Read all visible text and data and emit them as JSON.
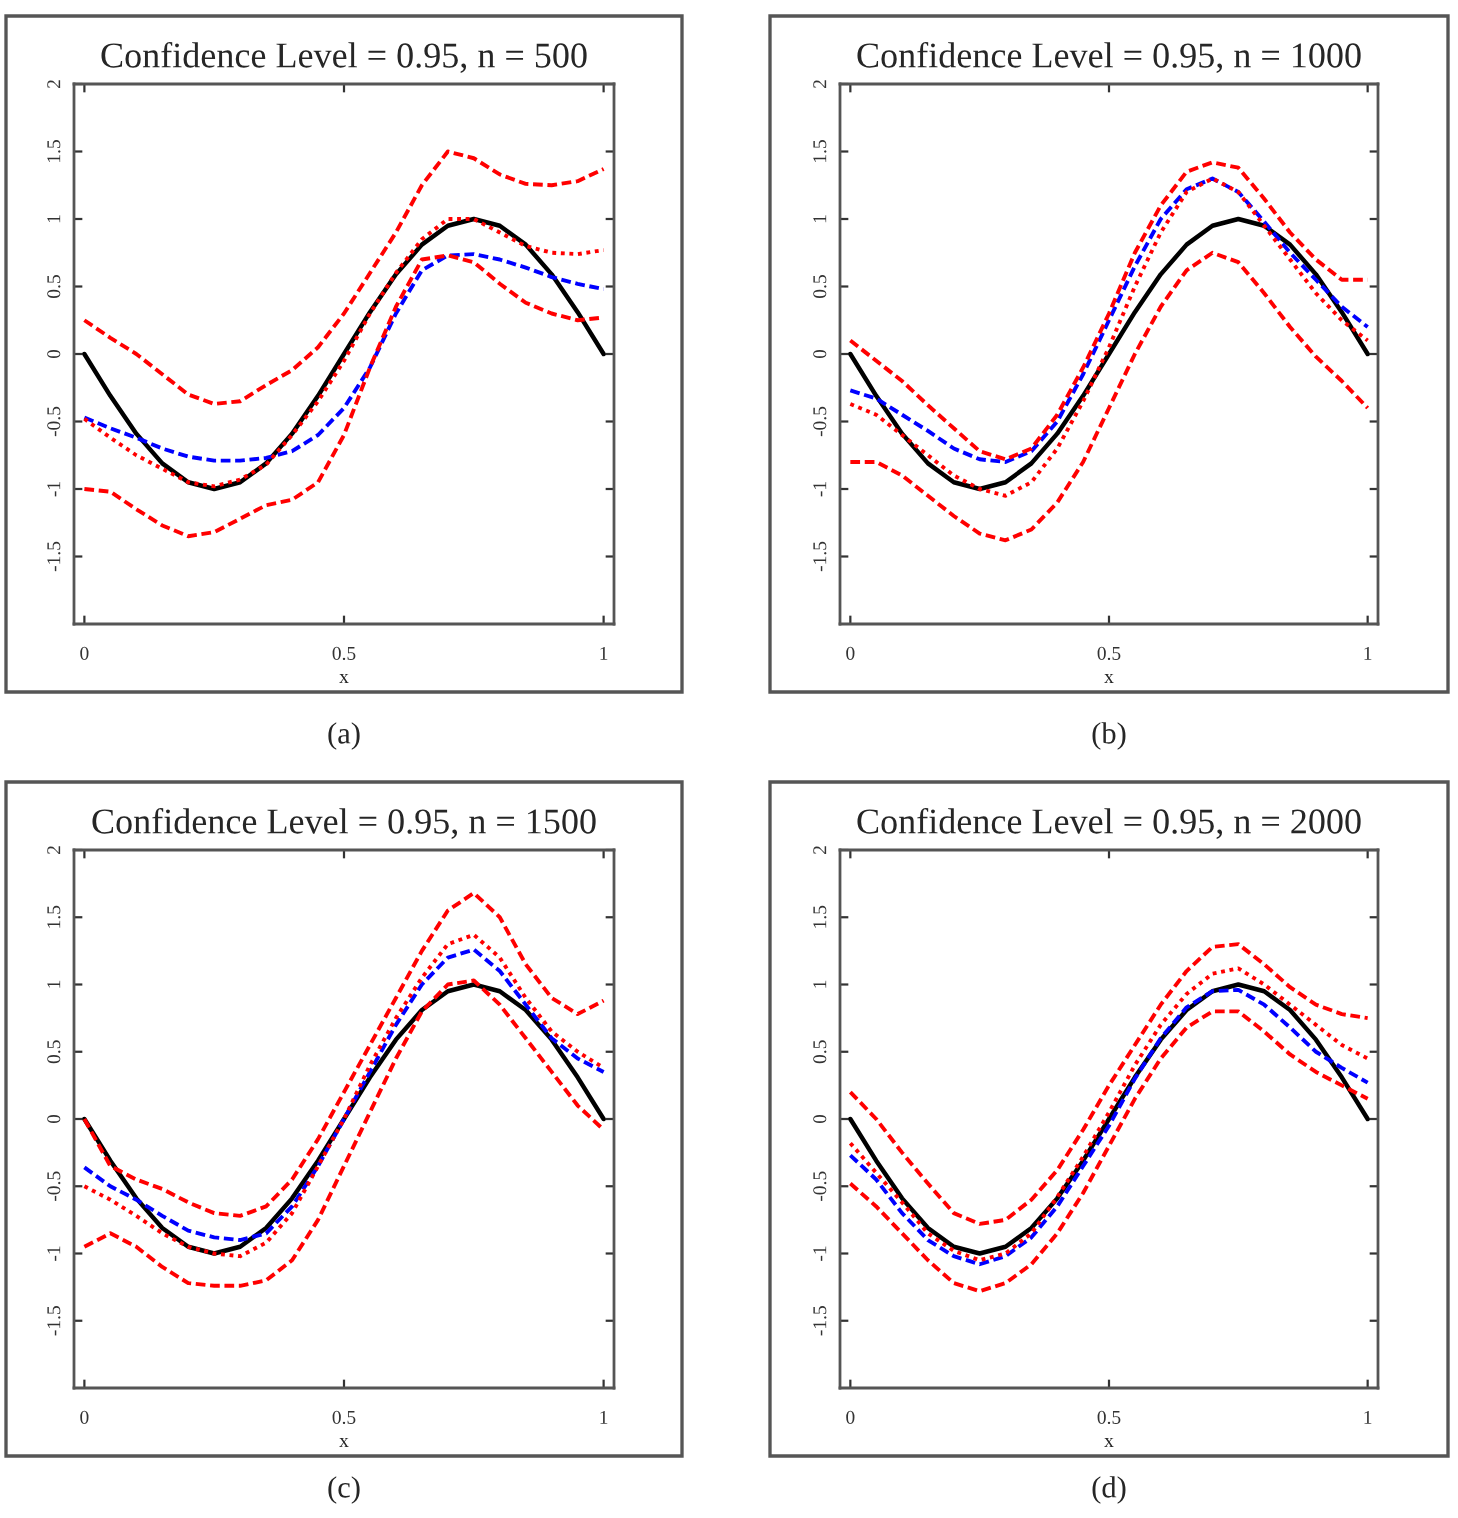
{
  "chart_data": [
    {
      "type": "line",
      "title": "Confidence Level = 0.95, n = 500",
      "xlabel": "x",
      "annotations": [
        "(a)"
      ],
      "xlim": [
        -0.02,
        1.02
      ],
      "ylim": [
        -2,
        2
      ],
      "xticks": [
        0,
        0.5,
        1
      ],
      "yticks": [
        -1.5,
        -1,
        -0.5,
        0,
        0.5,
        1,
        1.5,
        2
      ],
      "grid": false,
      "legend": false,
      "x": [
        0,
        0.05,
        0.1,
        0.15,
        0.2,
        0.25,
        0.3,
        0.35,
        0.4,
        0.45,
        0.5,
        0.55,
        0.6,
        0.65,
        0.7,
        0.75,
        0.8,
        0.85,
        0.9,
        0.95,
        1
      ],
      "series": [
        {
          "color": "#ff0000",
          "line_style": "dashed",
          "values": [
            0.25,
            0.12,
            0.0,
            -0.15,
            -0.3,
            -0.37,
            -0.35,
            -0.23,
            -0.12,
            0.05,
            0.3,
            0.6,
            0.9,
            1.25,
            1.5,
            1.45,
            1.33,
            1.26,
            1.25,
            1.28,
            1.37
          ]
        },
        {
          "color": "#ff0000",
          "line_style": "dashed",
          "values": [
            -1.0,
            -1.02,
            -1.15,
            -1.27,
            -1.35,
            -1.32,
            -1.22,
            -1.12,
            -1.08,
            -0.95,
            -0.6,
            -0.1,
            0.35,
            0.7,
            0.73,
            0.68,
            0.52,
            0.38,
            0.3,
            0.25,
            0.27
          ]
        },
        {
          "color": "#ff0000",
          "line_style": "dotted",
          "values": [
            -0.48,
            -0.62,
            -0.75,
            -0.85,
            -0.95,
            -0.98,
            -0.93,
            -0.82,
            -0.6,
            -0.35,
            -0.05,
            0.3,
            0.6,
            0.85,
            1.0,
            1.0,
            0.9,
            0.8,
            0.75,
            0.74,
            0.77
          ]
        },
        {
          "color": "#0000ff",
          "line_style": "dashed",
          "values": [
            -0.47,
            -0.55,
            -0.62,
            -0.7,
            -0.76,
            -0.79,
            -0.79,
            -0.77,
            -0.72,
            -0.6,
            -0.4,
            -0.1,
            0.3,
            0.62,
            0.73,
            0.74,
            0.7,
            0.64,
            0.57,
            0.52,
            0.48
          ]
        },
        {
          "color": "#000000",
          "line_style": "solid",
          "values": [
            0,
            -0.31,
            -0.59,
            -0.81,
            -0.95,
            -1,
            -0.95,
            -0.81,
            -0.59,
            -0.31,
            0,
            0.31,
            0.59,
            0.81,
            0.95,
            1,
            0.95,
            0.81,
            0.59,
            0.31,
            0
          ]
        }
      ]
    },
    {
      "type": "line",
      "title": "Confidence Level = 0.95, n = 1000",
      "xlabel": "x",
      "annotations": [
        "(b)"
      ],
      "xlim": [
        -0.02,
        1.02
      ],
      "ylim": [
        -2,
        2
      ],
      "xticks": [
        0,
        0.5,
        1
      ],
      "yticks": [
        -1.5,
        -1,
        -0.5,
        0,
        0.5,
        1,
        1.5,
        2
      ],
      "grid": false,
      "legend": false,
      "x": [
        0,
        0.05,
        0.1,
        0.15,
        0.2,
        0.25,
        0.3,
        0.35,
        0.4,
        0.45,
        0.5,
        0.55,
        0.6,
        0.65,
        0.7,
        0.75,
        0.8,
        0.85,
        0.9,
        0.95,
        1
      ],
      "series": [
        {
          "color": "#ff0000",
          "line_style": "dashed",
          "values": [
            0.1,
            -0.05,
            -0.2,
            -0.38,
            -0.55,
            -0.72,
            -0.78,
            -0.7,
            -0.45,
            -0.1,
            0.3,
            0.75,
            1.1,
            1.35,
            1.42,
            1.38,
            1.15,
            0.9,
            0.7,
            0.55,
            0.55
          ]
        },
        {
          "color": "#ff0000",
          "line_style": "dashed",
          "values": [
            -0.8,
            -0.8,
            -0.9,
            -1.05,
            -1.2,
            -1.33,
            -1.38,
            -1.3,
            -1.1,
            -0.8,
            -0.4,
            0.0,
            0.35,
            0.62,
            0.75,
            0.68,
            0.45,
            0.2,
            -0.02,
            -0.2,
            -0.4
          ]
        },
        {
          "color": "#ff0000",
          "line_style": "dotted",
          "values": [
            -0.37,
            -0.45,
            -0.6,
            -0.75,
            -0.9,
            -1.0,
            -1.05,
            -0.95,
            -0.7,
            -0.35,
            0.05,
            0.5,
            0.9,
            1.2,
            1.3,
            1.2,
            0.95,
            0.7,
            0.45,
            0.25,
            0.1
          ]
        },
        {
          "color": "#0000ff",
          "line_style": "dashed",
          "values": [
            -0.27,
            -0.33,
            -0.45,
            -0.57,
            -0.7,
            -0.78,
            -0.8,
            -0.72,
            -0.5,
            -0.15,
            0.25,
            0.65,
            1.0,
            1.22,
            1.3,
            1.2,
            0.98,
            0.75,
            0.55,
            0.35,
            0.2
          ]
        },
        {
          "color": "#000000",
          "line_style": "solid",
          "values": [
            0,
            -0.31,
            -0.59,
            -0.81,
            -0.95,
            -1,
            -0.95,
            -0.81,
            -0.59,
            -0.31,
            0,
            0.31,
            0.59,
            0.81,
            0.95,
            1,
            0.95,
            0.81,
            0.59,
            0.31,
            0
          ]
        }
      ]
    },
    {
      "type": "line",
      "title": "Confidence Level = 0.95, n = 1500",
      "xlabel": "x",
      "annotations": [
        "(c)"
      ],
      "xlim": [
        -0.02,
        1.02
      ],
      "ylim": [
        -2,
        2
      ],
      "xticks": [
        0,
        0.5,
        1
      ],
      "yticks": [
        -1.5,
        -1,
        -0.5,
        0,
        0.5,
        1,
        1.5,
        2
      ],
      "grid": false,
      "legend": false,
      "x": [
        0,
        0.05,
        0.1,
        0.15,
        0.2,
        0.25,
        0.3,
        0.35,
        0.4,
        0.45,
        0.5,
        0.55,
        0.6,
        0.65,
        0.7,
        0.75,
        0.8,
        0.85,
        0.9,
        0.95,
        1
      ],
      "series": [
        {
          "color": "#ff0000",
          "line_style": "dashed",
          "values": [
            0.0,
            -0.35,
            -0.45,
            -0.52,
            -0.62,
            -0.7,
            -0.72,
            -0.65,
            -0.45,
            -0.15,
            0.2,
            0.55,
            0.9,
            1.25,
            1.55,
            1.68,
            1.5,
            1.15,
            0.9,
            0.78,
            0.88
          ]
        },
        {
          "color": "#ff0000",
          "line_style": "dashed",
          "values": [
            -0.95,
            -0.85,
            -0.95,
            -1.1,
            -1.22,
            -1.24,
            -1.24,
            -1.2,
            -1.05,
            -0.75,
            -0.35,
            0.05,
            0.45,
            0.8,
            1.0,
            1.03,
            0.85,
            0.6,
            0.35,
            0.1,
            -0.08
          ]
        },
        {
          "color": "#ff0000",
          "line_style": "dotted",
          "values": [
            -0.5,
            -0.6,
            -0.72,
            -0.85,
            -0.95,
            -1.0,
            -1.02,
            -0.92,
            -0.7,
            -0.35,
            0.0,
            0.4,
            0.75,
            1.05,
            1.3,
            1.37,
            1.2,
            0.9,
            0.65,
            0.5,
            0.38
          ]
        },
        {
          "color": "#0000ff",
          "line_style": "dashed",
          "values": [
            -0.36,
            -0.5,
            -0.6,
            -0.72,
            -0.83,
            -0.88,
            -0.9,
            -0.85,
            -0.65,
            -0.35,
            0.0,
            0.35,
            0.7,
            1.0,
            1.2,
            1.26,
            1.1,
            0.85,
            0.6,
            0.45,
            0.35
          ]
        },
        {
          "color": "#000000",
          "line_style": "solid",
          "values": [
            0,
            -0.31,
            -0.59,
            -0.81,
            -0.95,
            -1,
            -0.95,
            -0.81,
            -0.59,
            -0.31,
            0,
            0.31,
            0.59,
            0.81,
            0.95,
            1,
            0.95,
            0.81,
            0.59,
            0.31,
            0
          ]
        }
      ]
    },
    {
      "type": "line",
      "title": "Confidence Level = 0.95, n = 2000",
      "xlabel": "x",
      "annotations": [
        "(d)"
      ],
      "xlim": [
        -0.02,
        1.02
      ],
      "ylim": [
        -2,
        2
      ],
      "xticks": [
        0,
        0.5,
        1
      ],
      "yticks": [
        -1.5,
        -1,
        -0.5,
        0,
        0.5,
        1,
        1.5,
        2
      ],
      "grid": false,
      "legend": false,
      "x": [
        0,
        0.05,
        0.1,
        0.15,
        0.2,
        0.25,
        0.3,
        0.35,
        0.4,
        0.45,
        0.5,
        0.55,
        0.6,
        0.65,
        0.7,
        0.75,
        0.8,
        0.85,
        0.9,
        0.95,
        1
      ],
      "series": [
        {
          "color": "#ff0000",
          "line_style": "dashed",
          "values": [
            0.2,
            0.0,
            -0.25,
            -0.48,
            -0.7,
            -0.78,
            -0.75,
            -0.6,
            -0.38,
            -0.08,
            0.25,
            0.55,
            0.85,
            1.1,
            1.28,
            1.3,
            1.15,
            0.98,
            0.85,
            0.78,
            0.75
          ]
        },
        {
          "color": "#ff0000",
          "line_style": "dashed",
          "values": [
            -0.48,
            -0.65,
            -0.85,
            -1.05,
            -1.22,
            -1.28,
            -1.22,
            -1.08,
            -0.85,
            -0.55,
            -0.2,
            0.15,
            0.45,
            0.68,
            0.8,
            0.8,
            0.65,
            0.48,
            0.35,
            0.25,
            0.15
          ]
        },
        {
          "color": "#ff0000",
          "line_style": "dotted",
          "values": [
            -0.18,
            -0.4,
            -0.62,
            -0.85,
            -0.98,
            -1.05,
            -1.0,
            -0.85,
            -0.58,
            -0.28,
            0.05,
            0.4,
            0.7,
            0.93,
            1.08,
            1.12,
            1.0,
            0.85,
            0.7,
            0.55,
            0.45
          ]
        },
        {
          "color": "#0000ff",
          "line_style": "dashed",
          "values": [
            -0.27,
            -0.45,
            -0.7,
            -0.9,
            -1.02,
            -1.08,
            -1.02,
            -0.88,
            -0.65,
            -0.35,
            -0.05,
            0.3,
            0.6,
            0.83,
            0.95,
            0.96,
            0.85,
            0.68,
            0.5,
            0.38,
            0.27
          ]
        },
        {
          "color": "#000000",
          "line_style": "solid",
          "values": [
            0,
            -0.31,
            -0.59,
            -0.81,
            -0.95,
            -1,
            -0.95,
            -0.81,
            -0.59,
            -0.31,
            0,
            0.31,
            0.59,
            0.81,
            0.95,
            1,
            0.95,
            0.81,
            0.59,
            0.31,
            0
          ]
        }
      ]
    }
  ]
}
